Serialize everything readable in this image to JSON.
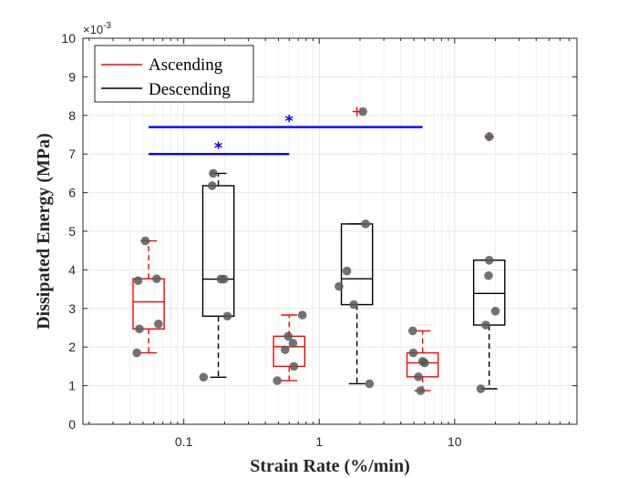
{
  "chart_data": {
    "type": "box",
    "title": "",
    "xlabel": "Strain Rate (%/min)",
    "ylabel": "Dissipated Energy (MPa)",
    "y_exponent_label": "×10",
    "y_exponent_power": "-3",
    "xscale": "log",
    "xlim": [
      0.018,
      80
    ],
    "ylim": [
      0,
      10
    ],
    "x_ticks": [
      0.1,
      1,
      10
    ],
    "x_tick_labels": [
      "0.1",
      "1",
      "10"
    ],
    "y_ticks": [
      0,
      1,
      2,
      3,
      4,
      5,
      6,
      7,
      8,
      9,
      10
    ],
    "y_tick_labels": [
      "0",
      "1",
      "2",
      "3",
      "4",
      "5",
      "6",
      "7",
      "8",
      "9",
      "10"
    ],
    "grid": true,
    "legend_position": "top-left",
    "colors": {
      "ascending": "#ff0000",
      "descending": "#000000",
      "points": "#595959",
      "significance": "#0000ff"
    },
    "series": [
      {
        "name": "Ascending",
        "color": "#ff0000",
        "boxes": [
          {
            "x": 0.055,
            "whisker_low": 1.85,
            "q1": 2.47,
            "median": 3.17,
            "q3": 3.77,
            "whisker_high": 4.75,
            "outliers": [],
            "points": [
              [
                0.045,
                1.85
              ],
              [
                0.046,
                3.72
              ],
              [
                0.047,
                2.47
              ],
              [
                0.052,
                4.75
              ],
              [
                0.063,
                3.77
              ],
              [
                0.065,
                2.6
              ]
            ]
          },
          {
            "x": 0.6,
            "whisker_low": 1.13,
            "q1": 1.5,
            "median": 2.01,
            "q3": 2.28,
            "whisker_high": 2.83,
            "outliers": [],
            "points": [
              [
                0.49,
                1.13
              ],
              [
                0.56,
                1.93
              ],
              [
                0.59,
                2.28
              ],
              [
                0.64,
                2.1
              ],
              [
                0.65,
                1.5
              ],
              [
                0.75,
                2.83
              ]
            ]
          },
          {
            "x": 5.8,
            "whisker_low": 0.87,
            "q1": 1.23,
            "median": 1.59,
            "q3": 1.85,
            "whisker_high": 2.42,
            "outliers": [],
            "points": [
              [
                4.9,
                2.42
              ],
              [
                4.95,
                1.85
              ],
              [
                5.4,
                1.23
              ],
              [
                5.6,
                0.87
              ],
              [
                5.8,
                1.63
              ],
              [
                6.0,
                1.59
              ]
            ]
          }
        ]
      },
      {
        "name": "Descending",
        "color": "#000000",
        "boxes": [
          {
            "x": 0.18,
            "whisker_low": 1.22,
            "q1": 2.8,
            "median": 3.76,
            "q3": 6.18,
            "whisker_high": 6.5,
            "outliers": [],
            "points": [
              [
                0.14,
                1.22
              ],
              [
                0.162,
                6.18
              ],
              [
                0.165,
                6.5
              ],
              [
                0.188,
                3.76
              ],
              [
                0.198,
                3.76
              ],
              [
                0.21,
                2.8
              ]
            ]
          },
          {
            "x": 1.9,
            "whisker_low": 1.05,
            "q1": 3.1,
            "median": 3.77,
            "q3": 5.19,
            "whisker_high": 5.19,
            "outliers": [
              8.1
            ],
            "points": [
              [
                1.4,
                3.57
              ],
              [
                1.6,
                3.97
              ],
              [
                1.8,
                3.1
              ],
              [
                2.2,
                5.19
              ],
              [
                2.35,
                1.05
              ],
              [
                2.1,
                8.1
              ]
            ]
          },
          {
            "x": 18.0,
            "whisker_low": 0.92,
            "q1": 2.57,
            "median": 3.39,
            "q3": 4.25,
            "whisker_high": 4.25,
            "outliers": [
              7.45
            ],
            "points": [
              [
                15.6,
                0.92
              ],
              [
                17.0,
                2.57
              ],
              [
                17.8,
                3.85
              ],
              [
                18.0,
                4.25
              ],
              [
                20.0,
                2.93
              ],
              [
                18.0,
                7.45
              ]
            ]
          }
        ]
      }
    ],
    "annotations": [
      {
        "type": "significance_bar",
        "x_start": 0.055,
        "x_end": 0.6,
        "y": 7.0,
        "marker": "*",
        "marker_x": 0.18,
        "marker_y": 7.2
      },
      {
        "type": "significance_bar",
        "x_start": 0.055,
        "x_end": 5.8,
        "y": 7.7,
        "marker": "*",
        "marker_x": 0.6,
        "marker_y": 7.9
      }
    ]
  }
}
